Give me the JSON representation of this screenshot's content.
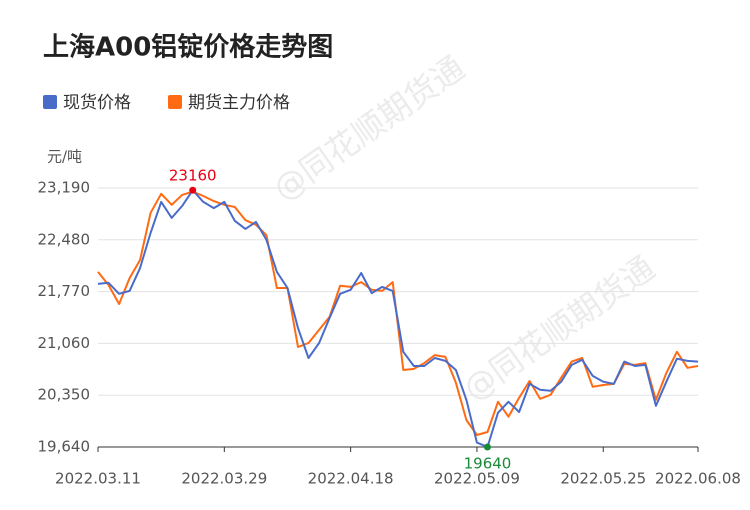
{
  "chart_data": {
    "type": "line",
    "title": "上海A00铝锭价格走势图",
    "y_unit": "元/吨",
    "watermark": "@同花顺期货通",
    "categories": [
      "2022.03.11",
      null,
      null,
      null,
      null,
      null,
      null,
      null,
      null,
      null,
      null,
      null,
      "2022.03.29",
      null,
      null,
      null,
      null,
      null,
      null,
      null,
      null,
      null,
      null,
      null,
      "2022.04.18",
      null,
      null,
      null,
      null,
      null,
      null,
      null,
      null,
      null,
      null,
      null,
      "2022.05.09",
      null,
      null,
      null,
      null,
      null,
      null,
      null,
      null,
      null,
      null,
      null,
      "2022.05.25",
      null,
      null,
      null,
      null,
      null,
      null,
      null,
      null,
      "2022.06.08"
    ],
    "series": [
      {
        "name": "现货价格",
        "color": "#4a6cc9",
        "values": [
          21875,
          21890,
          21740,
          21780,
          22095,
          22575,
          23000,
          22780,
          22945,
          23160,
          23000,
          22915,
          23000,
          22740,
          22630,
          22725,
          22480,
          22040,
          21820,
          21270,
          20860,
          21065,
          21410,
          21740,
          21795,
          22025,
          21750,
          21835,
          21780,
          20945,
          20750,
          20750,
          20860,
          20820,
          20695,
          20285,
          19700,
          19640,
          20110,
          20260,
          20120,
          20505,
          20425,
          20410,
          20535,
          20765,
          20835,
          20615,
          20535,
          20505,
          20810,
          20750,
          20765,
          20205,
          20535,
          20850,
          20820,
          20810
        ]
      },
      {
        "name": "期货主力价格",
        "color": "#ff6a13",
        "values": [
          22040,
          21860,
          21600,
          21955,
          22205,
          22850,
          23110,
          22960,
          23095,
          23140,
          23080,
          23010,
          22960,
          22930,
          22750,
          22685,
          22545,
          21820,
          21820,
          21010,
          21065,
          21245,
          21425,
          21850,
          21835,
          21900,
          21795,
          21780,
          21900,
          20695,
          20710,
          20790,
          20900,
          20875,
          20520,
          20010,
          19805,
          19845,
          20260,
          20055,
          20315,
          20545,
          20300,
          20355,
          20590,
          20810,
          20860,
          20465,
          20490,
          20505,
          20780,
          20765,
          20790,
          20285,
          20655,
          20945,
          20725,
          20750
        ]
      }
    ],
    "max_point": {
      "series": 0,
      "index": 9,
      "color": "#e60012"
    },
    "min_point": {
      "series": 0,
      "index": 37,
      "color": "#1a8a3a"
    },
    "ylim": [
      19640,
      23190
    ],
    "yticks": [
      {
        "value": 19640,
        "label": "19,640"
      },
      {
        "value": 20350,
        "label": "20,350"
      },
      {
        "value": 21060,
        "label": "21,060"
      },
      {
        "value": 21770,
        "label": "21,770"
      },
      {
        "value": 22480,
        "label": "22,480"
      },
      {
        "value": 23190,
        "label": "23,190"
      }
    ],
    "grid": true
  }
}
